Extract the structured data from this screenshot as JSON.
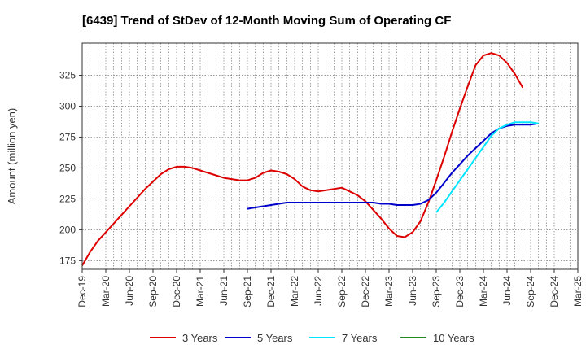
{
  "chart_data": {
    "type": "line",
    "title": "[6439]  Trend of StDev of 12-Month Moving Sum of Operating CF",
    "xlabel": "",
    "ylabel": "Amount (million yen)",
    "ylim": [
      168,
      351
    ],
    "yticks": [
      175,
      200,
      225,
      250,
      275,
      300,
      325
    ],
    "grid": true,
    "legend_position": "bottom",
    "x_labels": [
      "Dec-19",
      "Mar-20",
      "Jun-20",
      "Sep-20",
      "Dec-20",
      "Mar-21",
      "Jun-21",
      "Sep-21",
      "Dec-21",
      "Mar-22",
      "Jun-22",
      "Sep-22",
      "Dec-22",
      "Mar-23",
      "Jun-23",
      "Sep-23",
      "Dec-23",
      "Mar-24",
      "Jun-24",
      "Sep-24",
      "Dec-24",
      "Mar-25"
    ],
    "series": [
      {
        "name": "3 Years",
        "color": "#dd0000",
        "start_month": 0,
        "values": [
          171,
          182,
          191,
          198,
          205,
          212,
          219,
          226,
          233,
          239,
          245,
          249,
          251,
          251,
          250,
          248,
          246,
          244,
          242,
          241,
          240,
          240,
          242,
          246,
          248,
          247,
          245,
          241,
          235,
          232,
          231,
          232,
          233,
          234,
          231,
          228,
          223,
          216,
          209,
          201,
          195,
          194,
          198,
          207,
          222,
          240,
          259,
          279,
          298,
          316,
          333,
          341,
          343,
          341,
          335,
          326,
          315
        ]
      },
      {
        "name": "5 Years",
        "color": "#0000cc",
        "start_month": 21,
        "values": [
          217,
          218,
          219,
          220,
          221,
          222,
          222,
          222,
          222,
          222,
          222,
          222,
          222,
          222,
          222,
          222,
          222,
          221,
          221,
          220,
          220,
          220,
          221,
          224,
          230,
          238,
          246,
          253,
          260,
          266,
          272,
          278,
          282,
          284,
          285,
          285,
          285,
          286
        ]
      },
      {
        "name": "7 Years",
        "color": "#00e5ff",
        "start_month": 45,
        "values": [
          214,
          222,
          231,
          240,
          249,
          258,
          267,
          276,
          282,
          285,
          287,
          287,
          287,
          286
        ]
      },
      {
        "name": "10 Years",
        "color": "#228b22",
        "start_month": 0,
        "values": []
      }
    ]
  }
}
